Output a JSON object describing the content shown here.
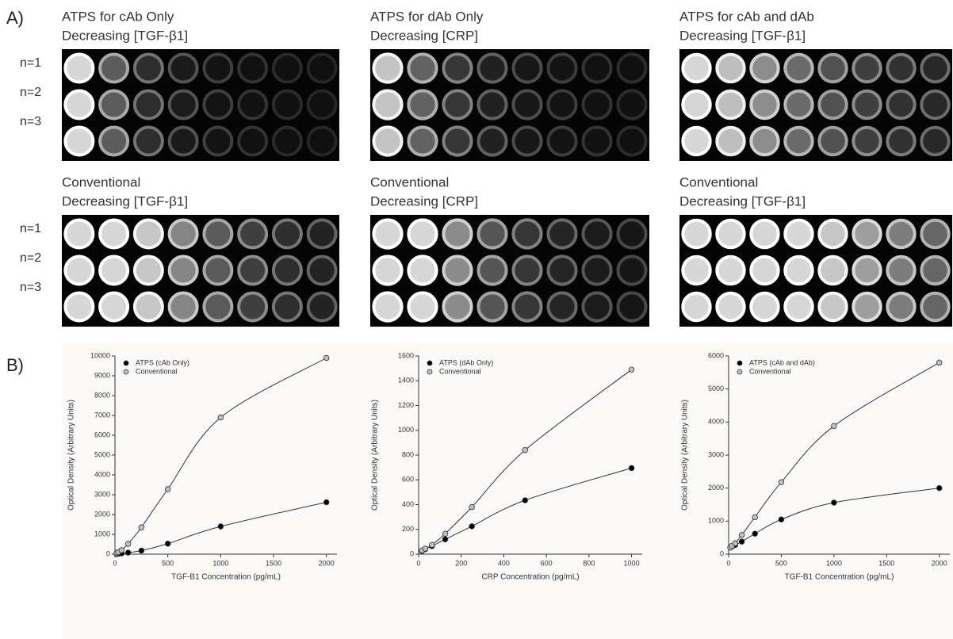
{
  "panel_labels": [
    "A)",
    "B)"
  ],
  "row_labels": [
    "n=1",
    "n=2",
    "n=3"
  ],
  "images": [
    {
      "caption": [
        "ATPS for cAb Only",
        "Decreasing [TGF-β1]"
      ]
    },
    {
      "caption": [
        "ATPS for dAb Only",
        "Decreasing [CRP]"
      ]
    },
    {
      "caption": [
        "ATPS for cAb and dAb",
        "Decreasing [TGF-β1]"
      ]
    },
    {
      "caption": [
        "Conventional",
        "Decreasing [TGF-β1]"
      ]
    },
    {
      "caption": [
        "Conventional",
        "Decreasing [CRP]"
      ]
    },
    {
      "caption": [
        "Conventional",
        "Decreasing [TGF-β1]"
      ]
    }
  ],
  "chart_data": [
    {
      "type": "line",
      "x_label": "TGF-B1 Concentration (pg/mL)",
      "y_label": "Optical Density (Arbitrary Units)",
      "x": [
        15.6,
        31.25,
        62.5,
        125,
        250,
        500,
        1000,
        2000
      ],
      "series": [
        {
          "name": "ATPS (cAb Only)",
          "color": "#000000",
          "values": [
            10,
            20,
            40,
            80,
            180,
            530,
            1400,
            2620
          ]
        },
        {
          "name": "Conventional",
          "color": "#c0c0c0",
          "values": [
            50,
            100,
            200,
            520,
            1350,
            3280,
            6900,
            9900
          ]
        }
      ],
      "xlim": [
        0,
        2100
      ],
      "ylim": [
        0,
        10000
      ],
      "xticks": [
        0,
        500,
        1000,
        1500,
        2000
      ],
      "yticks": [
        0,
        1000,
        2000,
        3000,
        4000,
        5000,
        6000,
        7000,
        8000,
        9000,
        10000
      ],
      "legend": "upper left"
    },
    {
      "type": "line",
      "x_label": "CRP Concentration (pg/mL)",
      "y_label": "Optical Density (Arbitrary Units)",
      "x": [
        15.6,
        31.25,
        62.5,
        125,
        250,
        500,
        1000
      ],
      "series": [
        {
          "name": "ATPS (dAb Only)",
          "color": "#000000",
          "values": [
            25,
            40,
            65,
            120,
            225,
            435,
            695
          ]
        },
        {
          "name": "Conventional",
          "color": "#c0c0c0",
          "values": [
            30,
            45,
            75,
            165,
            380,
            840,
            1490
          ]
        }
      ],
      "xlim": [
        0,
        1050
      ],
      "ylim": [
        0,
        1600
      ],
      "xticks": [
        0,
        200,
        400,
        600,
        800,
        1000
      ],
      "yticks": [
        0,
        200,
        400,
        600,
        800,
        1000,
        1200,
        1400,
        1600
      ],
      "legend": "upper left"
    },
    {
      "type": "line",
      "x_label": "TGF-B1 Concentration (pg/mL)",
      "y_label": "Optical Density (Arbitrary Units)",
      "x": [
        15.6,
        31.25,
        62.5,
        125,
        250,
        500,
        1000,
        2000
      ],
      "series": [
        {
          "name": "ATPS (cAb and dAb)",
          "color": "#000000",
          "values": [
            200,
            230,
            280,
            380,
            620,
            1050,
            1560,
            2000
          ]
        },
        {
          "name": "Conventional",
          "color": "#c0c0c0",
          "values": [
            200,
            250,
            330,
            580,
            1120,
            2180,
            3880,
            5800
          ]
        }
      ],
      "xlim": [
        0,
        2100
      ],
      "ylim": [
        0,
        6000
      ],
      "xticks": [
        0,
        500,
        1000,
        1500,
        2000
      ],
      "yticks": [
        0,
        1000,
        2000,
        3000,
        4000,
        5000,
        6000
      ],
      "legend": "upper left"
    }
  ]
}
